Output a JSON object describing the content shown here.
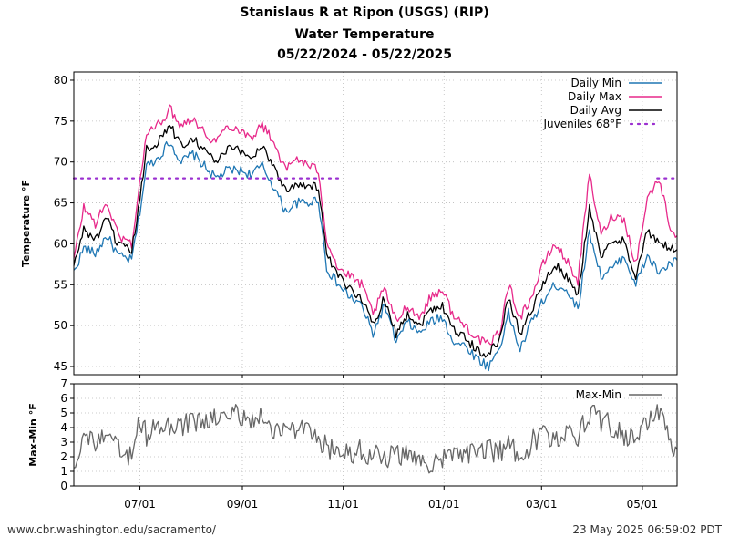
{
  "header": {
    "title": "Stanislaus R at Ripon (USGS) (RIP)",
    "subtitle": "Water Temperature",
    "date_range": "05/22/2024 - 05/22/2025"
  },
  "footer": {
    "url": "www.cbr.washington.edu/sacramento/",
    "timestamp": "23 May 2025 06:59:02 PDT"
  },
  "colors": {
    "min": "#1f77b4",
    "max": "#e7298a",
    "avg": "#000000",
    "threshold": "#9b30d0",
    "range": "#666666",
    "grid": "#bbbbbb"
  },
  "chart_data": [
    {
      "type": "line",
      "ylabel": "Temperature °F",
      "ylim": [
        44,
        81
      ],
      "yticks": [
        45,
        50,
        55,
        60,
        65,
        70,
        75,
        80
      ],
      "xlim": [
        "2024-05-22",
        "2025-05-22"
      ],
      "grid": true,
      "legend_position": "top-right",
      "series": [
        {
          "name": "Daily Min",
          "key": "min",
          "style": "solid",
          "points": [
            [
              "2024-05-22",
              56.5
            ],
            [
              "2024-05-28",
              59.5
            ],
            [
              "2024-06-04",
              58.8
            ],
            [
              "2024-06-11",
              61.0
            ],
            [
              "2024-06-18",
              58.5
            ],
            [
              "2024-06-26",
              58.0
            ],
            [
              "2024-07-01",
              64.0
            ],
            [
              "2024-07-05",
              69.5
            ],
            [
              "2024-07-12",
              70.5
            ],
            [
              "2024-07-19",
              72.5
            ],
            [
              "2024-07-26",
              70.0
            ],
            [
              "2024-08-02",
              71.0
            ],
            [
              "2024-08-09",
              69.5
            ],
            [
              "2024-08-16",
              68.0
            ],
            [
              "2024-08-23",
              69.0
            ],
            [
              "2024-08-30",
              69.0
            ],
            [
              "2024-09-06",
              68.5
            ],
            [
              "2024-09-13",
              69.5
            ],
            [
              "2024-09-20",
              67.0
            ],
            [
              "2024-09-27",
              64.0
            ],
            [
              "2024-10-04",
              65.0
            ],
            [
              "2024-10-11",
              65.0
            ],
            [
              "2024-10-17",
              65.5
            ],
            [
              "2024-10-22",
              57.0
            ],
            [
              "2024-10-29",
              55.0
            ],
            [
              "2024-11-05",
              53.5
            ],
            [
              "2024-11-12",
              52.5
            ],
            [
              "2024-11-19",
              49.0
            ],
            [
              "2024-11-26",
              52.5
            ],
            [
              "2024-12-03",
              48.0
            ],
            [
              "2024-12-10",
              50.5
            ],
            [
              "2024-12-17",
              49.0
            ],
            [
              "2024-12-24",
              50.5
            ],
            [
              "2024-12-31",
              51.0
            ],
            [
              "2025-01-07",
              48.0
            ],
            [
              "2025-01-14",
              47.5
            ],
            [
              "2025-01-21",
              46.0
            ],
            [
              "2025-01-28",
              45.0
            ],
            [
              "2025-02-04",
              47.5
            ],
            [
              "2025-02-09",
              51.5
            ],
            [
              "2025-02-16",
              47.0
            ],
            [
              "2025-02-23",
              50.5
            ],
            [
              "2025-03-02",
              53.0
            ],
            [
              "2025-03-09",
              55.0
            ],
            [
              "2025-03-16",
              54.5
            ],
            [
              "2025-03-23",
              52.0
            ],
            [
              "2025-03-30",
              61.5
            ],
            [
              "2025-04-06",
              56.0
            ],
            [
              "2025-04-13",
              57.0
            ],
            [
              "2025-04-20",
              58.5
            ],
            [
              "2025-04-27",
              55.0
            ],
            [
              "2025-05-04",
              58.5
            ],
            [
              "2025-05-11",
              56.5
            ],
            [
              "2025-05-18",
              57.5
            ],
            [
              "2025-05-22",
              58.0
            ]
          ]
        },
        {
          "name": "Daily Max",
          "key": "max",
          "style": "solid",
          "points": [
            [
              "2024-05-22",
              58.0
            ],
            [
              "2024-05-28",
              64.5
            ],
            [
              "2024-06-04",
              62.5
            ],
            [
              "2024-06-11",
              65.0
            ],
            [
              "2024-06-18",
              61.0
            ],
            [
              "2024-06-26",
              60.0
            ],
            [
              "2024-07-01",
              67.5
            ],
            [
              "2024-07-05",
              73.5
            ],
            [
              "2024-07-12",
              74.5
            ],
            [
              "2024-07-19",
              76.5
            ],
            [
              "2024-07-26",
              74.5
            ],
            [
              "2024-08-02",
              75.5
            ],
            [
              "2024-08-09",
              73.5
            ],
            [
              "2024-08-16",
              72.5
            ],
            [
              "2024-08-23",
              74.5
            ],
            [
              "2024-08-30",
              74.0
            ],
            [
              "2024-09-06",
              73.0
            ],
            [
              "2024-09-13",
              74.5
            ],
            [
              "2024-09-20",
              72.5
            ],
            [
              "2024-09-27",
              69.0
            ],
            [
              "2024-10-04",
              70.5
            ],
            [
              "2024-10-11",
              69.5
            ],
            [
              "2024-10-17",
              69.0
            ],
            [
              "2024-10-22",
              60.5
            ],
            [
              "2024-10-29",
              57.0
            ],
            [
              "2024-11-05",
              56.0
            ],
            [
              "2024-11-12",
              55.0
            ],
            [
              "2024-11-19",
              51.5
            ],
            [
              "2024-11-26",
              54.5
            ],
            [
              "2024-12-03",
              50.5
            ],
            [
              "2024-12-10",
              52.5
            ],
            [
              "2024-12-17",
              51.0
            ],
            [
              "2024-12-24",
              53.5
            ],
            [
              "2024-12-31",
              54.5
            ],
            [
              "2025-01-07",
              51.0
            ],
            [
              "2025-01-14",
              50.0
            ],
            [
              "2025-01-21",
              48.5
            ],
            [
              "2025-01-28",
              47.5
            ],
            [
              "2025-02-04",
              49.5
            ],
            [
              "2025-02-09",
              55.0
            ],
            [
              "2025-02-16",
              51.0
            ],
            [
              "2025-02-23",
              53.5
            ],
            [
              "2025-03-02",
              57.5
            ],
            [
              "2025-03-09",
              60.0
            ],
            [
              "2025-03-16",
              58.0
            ],
            [
              "2025-03-23",
              55.5
            ],
            [
              "2025-03-30",
              68.5
            ],
            [
              "2025-04-06",
              61.0
            ],
            [
              "2025-04-13",
              63.5
            ],
            [
              "2025-04-20",
              63.0
            ],
            [
              "2025-04-27",
              57.5
            ],
            [
              "2025-05-04",
              65.5
            ],
            [
              "2025-05-11",
              68.0
            ],
            [
              "2025-05-18",
              62.0
            ],
            [
              "2025-05-22",
              61.0
            ]
          ]
        },
        {
          "name": "Daily Avg",
          "key": "avg",
          "style": "solid",
          "points": [
            [
              "2024-05-22",
              57.2
            ],
            [
              "2024-05-28",
              61.8
            ],
            [
              "2024-06-04",
              60.5
            ],
            [
              "2024-06-11",
              63.0
            ],
            [
              "2024-06-18",
              59.8
            ],
            [
              "2024-06-26",
              59.0
            ],
            [
              "2024-07-01",
              65.5
            ],
            [
              "2024-07-05",
              71.5
            ],
            [
              "2024-07-12",
              72.5
            ],
            [
              "2024-07-19",
              74.5
            ],
            [
              "2024-07-26",
              72.0
            ],
            [
              "2024-08-02",
              73.0
            ],
            [
              "2024-08-09",
              71.5
            ],
            [
              "2024-08-16",
              70.0
            ],
            [
              "2024-08-23",
              71.5
            ],
            [
              "2024-08-30",
              71.5
            ],
            [
              "2024-09-06",
              70.5
            ],
            [
              "2024-09-13",
              72.0
            ],
            [
              "2024-09-20",
              69.5
            ],
            [
              "2024-09-27",
              66.5
            ],
            [
              "2024-10-04",
              67.5
            ],
            [
              "2024-10-11",
              67.0
            ],
            [
              "2024-10-17",
              67.0
            ],
            [
              "2024-10-22",
              58.5
            ],
            [
              "2024-10-29",
              56.0
            ],
            [
              "2024-11-05",
              54.5
            ],
            [
              "2024-11-12",
              53.5
            ],
            [
              "2024-11-19",
              50.0
            ],
            [
              "2024-11-26",
              53.5
            ],
            [
              "2024-12-03",
              49.0
            ],
            [
              "2024-12-10",
              51.5
            ],
            [
              "2024-12-17",
              50.0
            ],
            [
              "2024-12-24",
              52.0
            ],
            [
              "2024-12-31",
              52.5
            ],
            [
              "2025-01-07",
              49.5
            ],
            [
              "2025-01-14",
              48.5
            ],
            [
              "2025-01-21",
              47.0
            ],
            [
              "2025-01-28",
              46.5
            ],
            [
              "2025-02-04",
              48.5
            ],
            [
              "2025-02-09",
              53.5
            ],
            [
              "2025-02-16",
              49.0
            ],
            [
              "2025-02-23",
              52.0
            ],
            [
              "2025-03-02",
              55.0
            ],
            [
              "2025-03-09",
              57.5
            ],
            [
              "2025-03-16",
              56.0
            ],
            [
              "2025-03-23",
              53.5
            ],
            [
              "2025-03-30",
              64.5
            ],
            [
              "2025-04-06",
              58.5
            ],
            [
              "2025-04-13",
              60.0
            ],
            [
              "2025-04-20",
              60.5
            ],
            [
              "2025-04-27",
              56.0
            ],
            [
              "2025-05-04",
              61.5
            ],
            [
              "2025-05-11",
              60.0
            ],
            [
              "2025-05-18",
              59.5
            ],
            [
              "2025-05-22",
              59.3
            ]
          ]
        },
        {
          "name": "Juveniles 68°F",
          "key": "threshold",
          "style": "dotted",
          "segments": [
            [
              [
                "2024-05-22",
                68
              ],
              [
                "2024-11-01",
                68
              ]
            ],
            [
              [
                "2025-05-10",
                68
              ],
              [
                "2025-05-22",
                68
              ]
            ]
          ]
        }
      ]
    },
    {
      "type": "line",
      "ylabel": "Max-Min °F",
      "ylim": [
        0,
        7
      ],
      "yticks": [
        0,
        1,
        2,
        3,
        4,
        5,
        6,
        7
      ],
      "xlim": [
        "2024-05-22",
        "2025-05-22"
      ],
      "x_tick_labels": [
        "07/01",
        "09/01",
        "11/01",
        "01/01",
        "03/01",
        "05/01"
      ],
      "x_tick_dates": [
        "2024-07-01",
        "2024-09-01",
        "2024-11-01",
        "2025-01-01",
        "2025-03-01",
        "2025-05-01"
      ],
      "grid": true,
      "legend_position": "top-right",
      "series": [
        {
          "name": "Max-Min",
          "key": "range",
          "style": "solid",
          "points": [
            [
              "2024-05-22",
              1.5
            ],
            [
              "2024-05-28",
              3.5
            ],
            [
              "2024-06-04",
              3.0
            ],
            [
              "2024-06-11",
              3.2
            ],
            [
              "2024-06-18",
              2.5
            ],
            [
              "2024-06-26",
              2.0
            ],
            [
              "2024-07-01",
              4.5
            ],
            [
              "2024-07-05",
              3.5
            ],
            [
              "2024-07-12",
              4.0
            ],
            [
              "2024-07-19",
              4.0
            ],
            [
              "2024-07-26",
              4.2
            ],
            [
              "2024-08-02",
              4.3
            ],
            [
              "2024-08-09",
              4.5
            ],
            [
              "2024-08-16",
              4.5
            ],
            [
              "2024-08-23",
              4.8
            ],
            [
              "2024-08-30",
              5.0
            ],
            [
              "2024-09-06",
              4.5
            ],
            [
              "2024-09-13",
              4.6
            ],
            [
              "2024-09-20",
              4.0
            ],
            [
              "2024-09-27",
              3.8
            ],
            [
              "2024-10-04",
              4.0
            ],
            [
              "2024-10-11",
              3.5
            ],
            [
              "2024-10-17",
              3.0
            ],
            [
              "2024-10-22",
              2.8
            ],
            [
              "2024-10-29",
              2.0
            ],
            [
              "2024-11-05",
              2.3
            ],
            [
              "2024-11-12",
              2.5
            ],
            [
              "2024-11-19",
              2.0
            ],
            [
              "2024-11-26",
              2.0
            ],
            [
              "2024-12-03",
              2.2
            ],
            [
              "2024-12-10",
              2.0
            ],
            [
              "2024-12-17",
              2.0
            ],
            [
              "2024-12-24",
              1.5
            ],
            [
              "2024-12-31",
              1.8
            ],
            [
              "2025-01-07",
              2.0
            ],
            [
              "2025-01-14",
              2.2
            ],
            [
              "2025-01-21",
              2.5
            ],
            [
              "2025-01-28",
              2.5
            ],
            [
              "2025-02-04",
              2.3
            ],
            [
              "2025-02-09",
              2.8
            ],
            [
              "2025-02-16",
              2.0
            ],
            [
              "2025-02-23",
              3.0
            ],
            [
              "2025-03-02",
              3.5
            ],
            [
              "2025-03-09",
              3.0
            ],
            [
              "2025-03-16",
              4.0
            ],
            [
              "2025-03-23",
              3.5
            ],
            [
              "2025-03-30",
              5.0
            ],
            [
              "2025-04-06",
              4.5
            ],
            [
              "2025-04-13",
              4.0
            ],
            [
              "2025-04-20",
              3.5
            ],
            [
              "2025-04-27",
              3.0
            ],
            [
              "2025-05-04",
              4.5
            ],
            [
              "2025-05-11",
              5.0
            ],
            [
              "2025-05-18",
              3.0
            ],
            [
              "2025-05-22",
              2.5
            ]
          ]
        }
      ]
    }
  ]
}
